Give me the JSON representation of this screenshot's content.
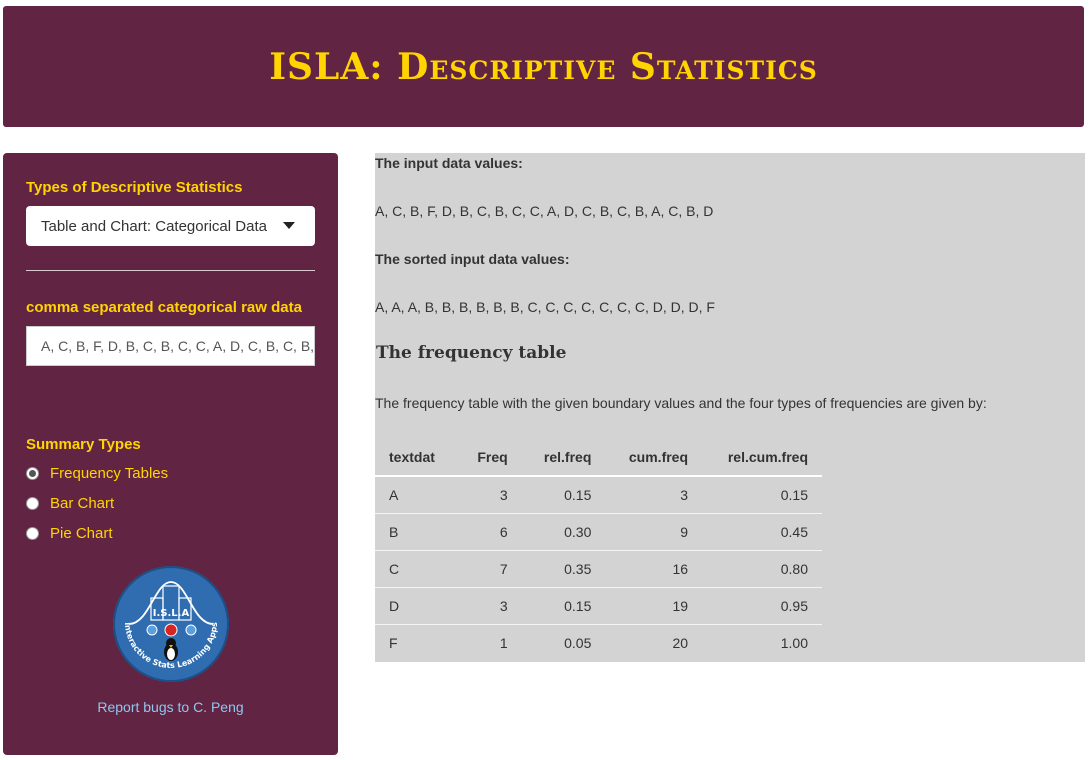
{
  "header": {
    "title": "ISLA: Descriptive Statistics"
  },
  "sidebar": {
    "stat_type_label": "Types of Descriptive Statistics",
    "stat_type_selected": "Table and Chart: Categorical Data",
    "raw_data_label": "comma separated categorical raw data",
    "raw_data_value": "A, C, B, F, D, B, C, B, C, C, A, D, C, B, C, B, A, C, B, D",
    "summary_label": "Summary Types",
    "summary_options": [
      "Frequency Tables",
      "Bar Chart",
      "Pie Chart"
    ],
    "summary_selected": "Frequency Tables",
    "logo_text": "I.S.L.A",
    "logo_ring_text": "Interactive Stats Learning Apps",
    "report_link": "Report bugs to C. Peng"
  },
  "main": {
    "input_heading": "The input data values:",
    "input_values": "A, C, B, F, D, B, C, B, C, C, A, D, C, B, C, B, A, C, B, D",
    "sorted_heading": "The sorted input data values:",
    "sorted_values": "A, A, A, B, B, B, B, B, B, C, C, C, C, C, C, C, D, D, D, F",
    "table_heading": "The frequency table",
    "table_description": "The frequency table with the given boundary values and the four types of frequencies are given by:",
    "table": {
      "columns": [
        "textdat",
        "Freq",
        "rel.freq",
        "cum.freq",
        "rel.cum.freq"
      ],
      "rows": [
        [
          "A",
          "3",
          "0.15",
          "3",
          "0.15"
        ],
        [
          "B",
          "6",
          "0.30",
          "9",
          "0.45"
        ],
        [
          "C",
          "7",
          "0.35",
          "16",
          "0.80"
        ],
        [
          "D",
          "3",
          "0.15",
          "19",
          "0.95"
        ],
        [
          "F",
          "1",
          "0.05",
          "20",
          "1.00"
        ]
      ]
    }
  },
  "colors": {
    "brand": "#612442",
    "accent": "#ffd400",
    "link": "#8fc7f0",
    "panel": "#d3d3d3"
  }
}
